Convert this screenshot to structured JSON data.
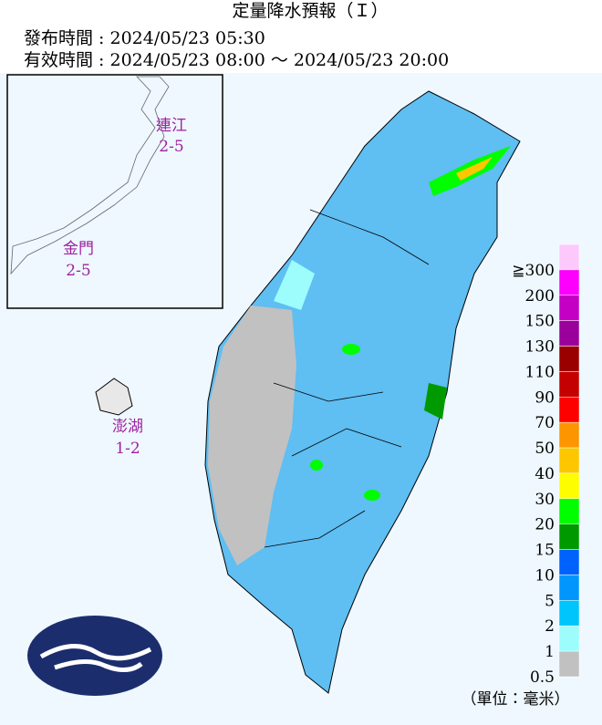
{
  "header": {
    "title": "定量降水預報（Ｉ）",
    "issued": "發布時間 : 2024/05/23 05:30",
    "valid": "有效時間 : 2024/05/23 08:00 ～ 2024/05/23 20:00"
  },
  "islands": [
    {
      "name": "連江",
      "range": "2-5"
    },
    {
      "name": "金門",
      "range": "2-5"
    },
    {
      "name": "澎湖",
      "range": "1-2"
    }
  ],
  "legend": {
    "levels": [
      {
        "label": "≧300",
        "color": "#fdc9fd"
      },
      {
        "label": "200",
        "color": "#fd00fd"
      },
      {
        "label": "150",
        "color": "#c500c5"
      },
      {
        "label": "130",
        "color": "#9a009a"
      },
      {
        "label": "110",
        "color": "#9a0000"
      },
      {
        "label": "90",
        "color": "#c50000"
      },
      {
        "label": "70",
        "color": "#fd0000"
      },
      {
        "label": "50",
        "color": "#fd9500"
      },
      {
        "label": "40",
        "color": "#fdc700"
      },
      {
        "label": "30",
        "color": "#fdfd00"
      },
      {
        "label": "20",
        "color": "#00fd00"
      },
      {
        "label": "15",
        "color": "#009a00"
      },
      {
        "label": "10",
        "color": "#0062fd"
      },
      {
        "label": "5",
        "color": "#0096fd"
      },
      {
        "label": "2",
        "color": "#00c5fd"
      },
      {
        "label": "1",
        "color": "#9dfdfd"
      },
      {
        "label": "0.5",
        "color": "#c1c1c1"
      }
    ],
    "unit": "（單位：毫米）"
  }
}
